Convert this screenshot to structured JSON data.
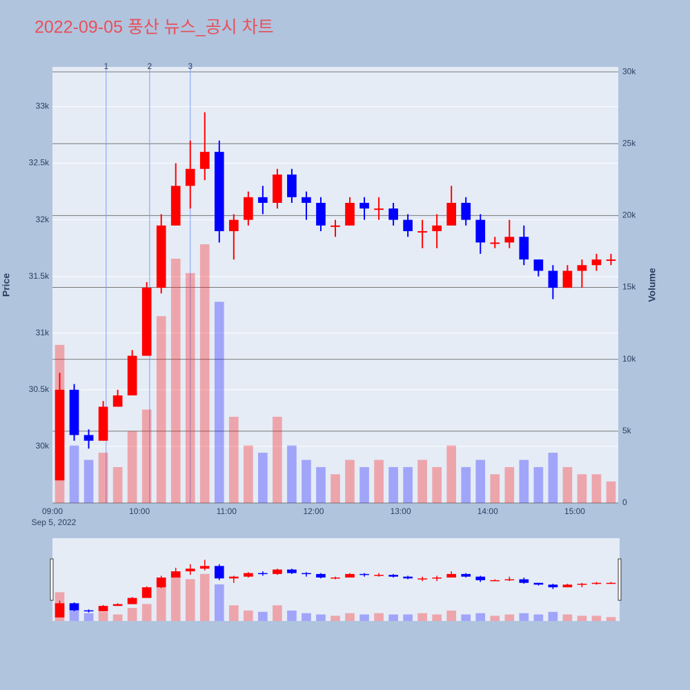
{
  "chart_data": {
    "type": "candlestick",
    "title": "2022-09-05 풍산 뉴스_공시 차트",
    "x": [
      "09:00",
      "09:10",
      "09:20",
      "09:30",
      "09:40",
      "09:50",
      "10:00",
      "10:10",
      "10:20",
      "10:30",
      "10:40",
      "10:50",
      "11:00",
      "11:10",
      "11:20",
      "11:30",
      "11:40",
      "11:50",
      "12:00",
      "12:10",
      "12:20",
      "12:30",
      "12:40",
      "12:50",
      "13:00",
      "13:10",
      "13:20",
      "13:30",
      "13:40",
      "13:50",
      "14:00",
      "14:10",
      "14:20",
      "14:30",
      "14:40",
      "14:50",
      "15:00",
      "15:10",
      "15:20"
    ],
    "open": [
      29700,
      30500,
      30100,
      30050,
      30350,
      30450,
      30800,
      31400,
      31950,
      32300,
      32450,
      32600,
      31900,
      32000,
      32200,
      32150,
      32400,
      32200,
      32150,
      31950,
      31950,
      32150,
      32100,
      32100,
      32000,
      31900,
      31900,
      31950,
      32150,
      32000,
      31800,
      31800,
      31850,
      31650,
      31550,
      31400,
      31550,
      31600,
      31650
    ],
    "high": [
      30650,
      30550,
      30150,
      30400,
      30500,
      30850,
      31450,
      32050,
      32500,
      32700,
      32950,
      32700,
      32050,
      32250,
      32300,
      32450,
      32450,
      32250,
      32200,
      32000,
      32200,
      32200,
      32200,
      32150,
      32050,
      32000,
      32050,
      32300,
      32200,
      32050,
      31850,
      32000,
      31950,
      31650,
      31600,
      31600,
      31650,
      31700,
      31700
    ],
    "low": [
      29700,
      30050,
      29980,
      30050,
      30350,
      30450,
      30800,
      31350,
      31950,
      32100,
      32350,
      31800,
      31650,
      31950,
      32050,
      32100,
      32150,
      32000,
      31900,
      31850,
      31950,
      32000,
      32000,
      31950,
      31850,
      31750,
      31750,
      31950,
      31950,
      31700,
      31750,
      31750,
      31600,
      31500,
      31300,
      31400,
      31400,
      31550,
      31600
    ],
    "close": [
      30500,
      30100,
      30050,
      30350,
      30450,
      30800,
      31400,
      31950,
      32300,
      32450,
      32600,
      31900,
      32000,
      32200,
      32150,
      32400,
      32200,
      32150,
      31950,
      31950,
      32150,
      32100,
      32100,
      32000,
      31900,
      31900,
      31950,
      32150,
      32000,
      31800,
      31800,
      31850,
      31650,
      31550,
      31400,
      31550,
      31600,
      31650,
      31650
    ],
    "volume": [
      11000,
      4000,
      3000,
      3500,
      2500,
      5000,
      6500,
      13000,
      17000,
      16000,
      18000,
      14000,
      6000,
      4000,
      3500,
      6000,
      4000,
      3000,
      2500,
      2000,
      3000,
      2500,
      3000,
      2500,
      2500,
      3000,
      2500,
      4000,
      2500,
      3000,
      2000,
      2500,
      3000,
      2500,
      3500,
      2500,
      2000,
      2000,
      1500
    ],
    "up_color": "#ff0000",
    "down_color": "#0000ff",
    "xlim": [
      "09:00",
      "15:30"
    ],
    "xticks": [
      "09:00",
      "10:00",
      "11:00",
      "12:00",
      "13:00",
      "14:00",
      "15:00"
    ],
    "x_date_label": "Sep 5, 2022",
    "ylim": [
      29500,
      33350
    ],
    "yticks": [
      {
        "value": 30000,
        "label": "30k"
      },
      {
        "value": 30500,
        "label": "30.5k"
      },
      {
        "value": 31000,
        "label": "31k"
      },
      {
        "value": 31500,
        "label": "31.5k"
      },
      {
        "value": 32000,
        "label": "32k"
      },
      {
        "value": 32500,
        "label": "32.5k"
      },
      {
        "value": 33000,
        "label": "33k"
      }
    ],
    "y2lim": [
      0,
      30340
    ],
    "y2ticks": [
      0,
      {
        "value": 5000,
        "label": "5k"
      },
      {
        "value": 10000,
        "label": "10k"
      },
      {
        "value": 15000,
        "label": "15k"
      },
      {
        "value": 20000,
        "label": "20k"
      },
      {
        "value": 25000,
        "label": "25k"
      },
      {
        "value": 30000,
        "label": "30k"
      }
    ],
    "y_label": "Price",
    "y2_label": "Volume",
    "annotations": [
      {
        "x": "09:37",
        "label": "1"
      },
      {
        "x": "10:07",
        "label": "2"
      },
      {
        "x": "10:35",
        "label": "3"
      }
    ],
    "grid": true
  }
}
